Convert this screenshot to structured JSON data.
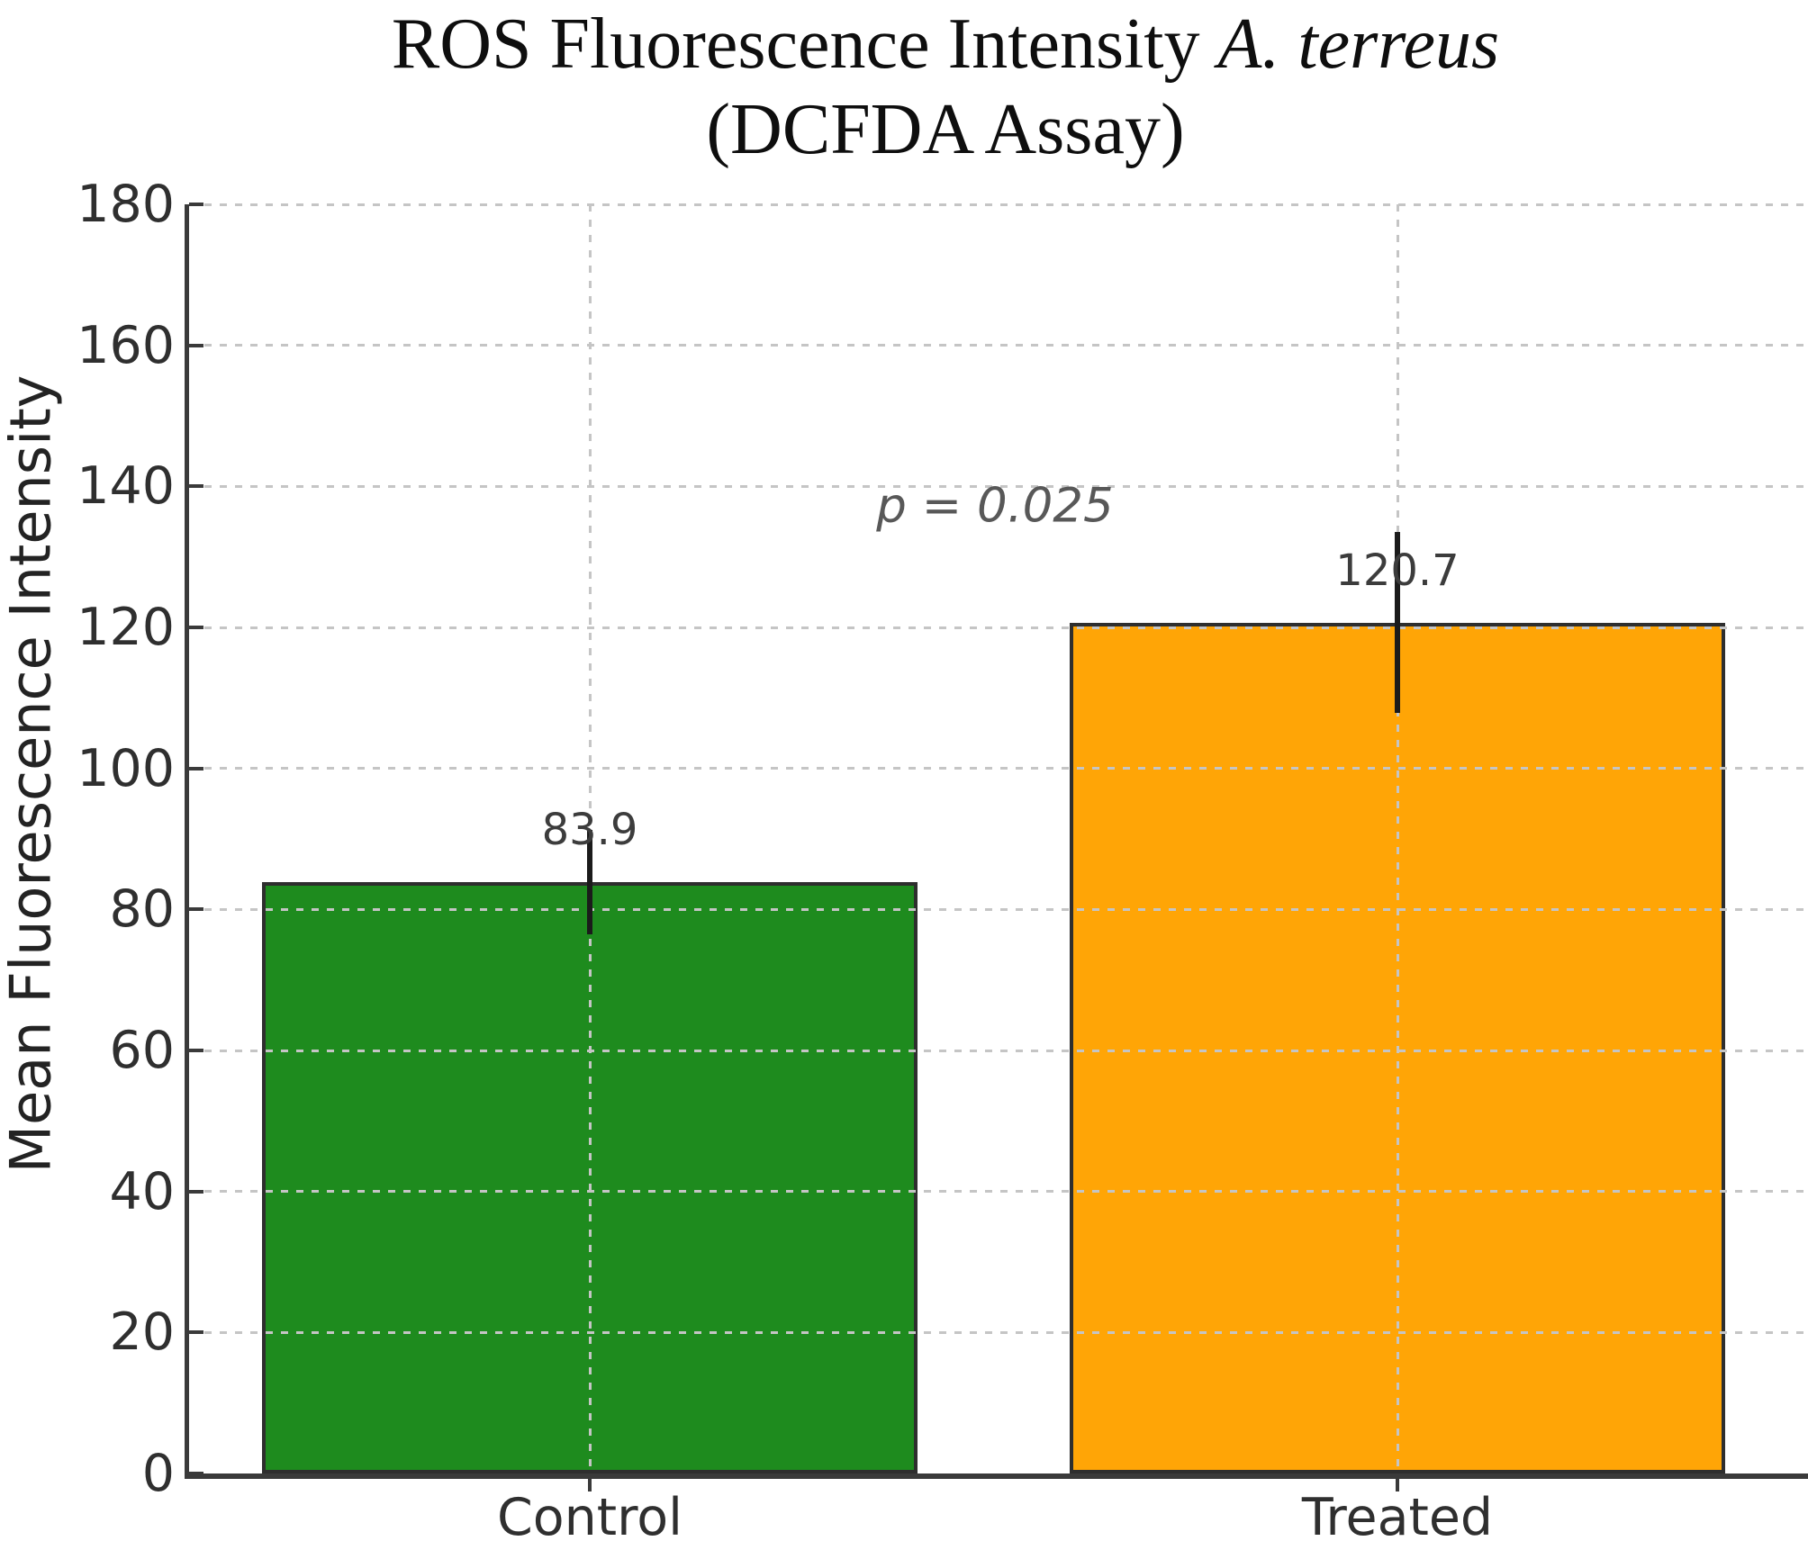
{
  "chart_data": {
    "type": "bar",
    "title_prefix": "ROS Fluorescence Intensity",
    "title_species": "A. terreus",
    "subtitle": "(DCFDA Assay)",
    "ylabel": "Mean Fluorescence Intensity",
    "xlabel": "",
    "categories": [
      "Control",
      "Treated"
    ],
    "values": [
      83.9,
      120.7
    ],
    "errors": [
      7.4,
      12.8
    ],
    "value_labels": [
      "83.9",
      "120.7"
    ],
    "bar_colors": [
      "#1e8b1e",
      "#ffa506"
    ],
    "bar_edge_color": "#2e2e2e",
    "error_bar_color": "#1b1b1b",
    "annotation": "p = 0.025",
    "ylim": [
      0,
      180
    ],
    "ytick_step": 20,
    "yticks": [
      0,
      20,
      40,
      60,
      80,
      100,
      120,
      140,
      160,
      180
    ],
    "grid": true,
    "grid_style": "dotted",
    "legend": "none"
  }
}
